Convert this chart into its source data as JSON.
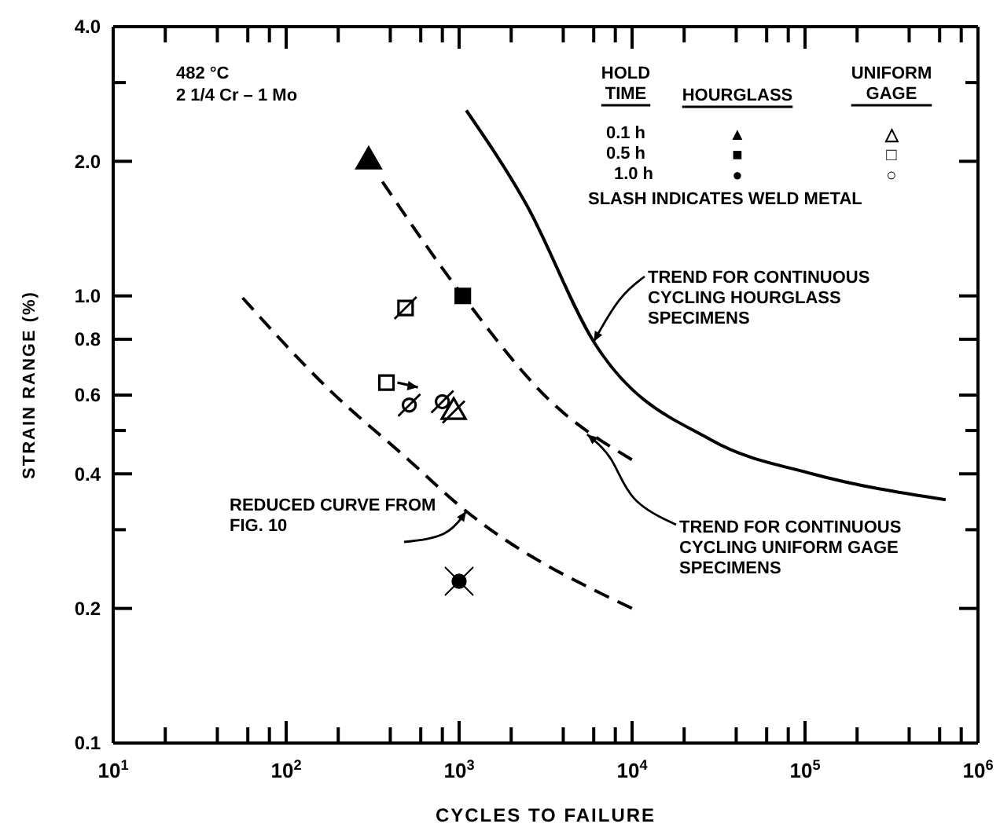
{
  "chart_data": {
    "type": "scatter",
    "xlabel": "CYCLES TO FAILURE",
    "ylabel": "STRAIN RANGE (%)",
    "log": "xy",
    "grid": false,
    "xlim": [
      10,
      1000000
    ],
    "ylim": [
      0.1,
      4.0
    ],
    "xticks": [
      {
        "value": 10,
        "label": "10$^{1}$"
      },
      {
        "value": 20,
        "label": null
      },
      {
        "value": 40,
        "label": null
      },
      {
        "value": 60,
        "label": null
      },
      {
        "value": 80,
        "label": null
      },
      {
        "value": 100,
        "label": "10$^{2}$"
      },
      {
        "value": 200,
        "label": null
      },
      {
        "value": 400,
        "label": null
      },
      {
        "value": 600,
        "label": null
      },
      {
        "value": 800,
        "label": null
      },
      {
        "value": 1000,
        "label": "10$^{3}$"
      },
      {
        "value": 2000,
        "label": null
      },
      {
        "value": 4000,
        "label": null
      },
      {
        "value": 6000,
        "label": null
      },
      {
        "value": 8000,
        "label": null
      },
      {
        "value": 10000,
        "label": "10$^{4}$"
      },
      {
        "value": 20000,
        "label": null
      },
      {
        "value": 40000,
        "label": null
      },
      {
        "value": 60000,
        "label": null
      },
      {
        "value": 80000,
        "label": null
      },
      {
        "value": 100000,
        "label": "10$^{5}$"
      },
      {
        "value": 200000,
        "label": null
      },
      {
        "value": 400000,
        "label": null
      },
      {
        "value": 600000,
        "label": null
      },
      {
        "value": 800000,
        "label": null
      },
      {
        "value": 1000000,
        "label": "10$^{6}$"
      }
    ],
    "yticks": [
      {
        "value": 0.1,
        "label": "0.1"
      },
      {
        "value": 0.2,
        "label": "0.2"
      },
      {
        "value": 0.3,
        "label": null
      },
      {
        "value": 0.4,
        "label": "0.4"
      },
      {
        "value": 0.5,
        "label": null
      },
      {
        "value": 0.6,
        "label": "0.6"
      },
      {
        "value": 0.8,
        "label": "0.8"
      },
      {
        "value": 1.0,
        "label": "1.0"
      },
      {
        "value": 2.0,
        "label": "2.0"
      },
      {
        "value": 3.0,
        "label": null
      },
      {
        "value": 4.0,
        "label": "4.0"
      }
    ],
    "series": [
      {
        "marker": "triangle",
        "color": "#000000",
        "x": [
          300
        ],
        "values": [
          2.0
        ]
      },
      {
        "marker": "square",
        "color": "#000000",
        "x": [
          1050
        ],
        "values": [
          1.0
        ]
      },
      {
        "marker": "circle",
        "color": "#000000",
        "x": [
          1000
        ],
        "values": [
          0.23
        ]
      },
      {
        "marker": "triangle",
        "color": "#000000",
        "x": [
          930
        ],
        "values": [
          0.55
        ]
      },
      {
        "marker": "square",
        "color": "#000000",
        "x": [
          380
        ],
        "values": [
          0.64
        ]
      },
      {
        "marker": "square",
        "color": "#000000",
        "x": [
          490
        ],
        "values": [
          0.94
        ]
      },
      {
        "marker": "circle",
        "color": "#000000",
        "x": [
          515,
          800
        ],
        "values": [
          0.57,
          0.58
        ]
      },
      {
        "type": "line",
        "line_style": "solid",
        "color": "#000000",
        "x": [
          1100,
          2450,
          6000,
          29000,
          110000,
          650000
        ],
        "values": [
          2.6,
          1.6,
          0.79,
          0.475,
          0.4,
          0.35
        ]
      },
      {
        "type": "line",
        "line_style": "dashed",
        "color": "#000000",
        "x": [
          360,
          1050,
          3400,
          10000
        ],
        "values": [
          1.8,
          1.0,
          0.58,
          0.43
        ]
      },
      {
        "type": "line",
        "line_style": "dashed",
        "color": "#000000",
        "x": [
          56,
          175,
          510,
          1000,
          10000
        ],
        "values": [
          0.99,
          0.62,
          0.43,
          0.34,
          0.2
        ]
      }
    ],
    "annotations": [
      "482 °C",
      "2 1/4 Cr – 1 Mo",
      "HOLD TIME",
      "HOURGLASS",
      "UNIFORM GAGE",
      "0.1 h",
      "0.5 h",
      "1.0 h",
      "▲",
      "■",
      "●",
      "△",
      "□",
      "○",
      "SLASH INDICATES WELD METAL",
      {
        "text": "TREND FOR CONTINUOUS CYCLING HOURGLASS SPECIMENS",
        "x": 6000,
        "y": 0.79
      },
      {
        "text": "TREND FOR CONTINUOUS CYCLING UNIFORM GAGE SPECIMENS",
        "x": 5500,
        "y": 0.49
      },
      {
        "text": "REDUCED CURVE FROM FIG. 10",
        "x": 1100,
        "y": 0.33
      }
    ]
  }
}
